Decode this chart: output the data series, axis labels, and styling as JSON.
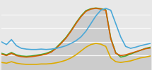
{
  "x": [
    0,
    1,
    2,
    3,
    4,
    5,
    6,
    7,
    8,
    9,
    10,
    11,
    12,
    13,
    14,
    15,
    16,
    17,
    18,
    19,
    20,
    21,
    22,
    23,
    24,
    25,
    26,
    27,
    28,
    29,
    30
  ],
  "blue": [
    72,
    65,
    78,
    62,
    55,
    53,
    52,
    52,
    53,
    52,
    53,
    55,
    58,
    62,
    68,
    75,
    85,
    100,
    120,
    140,
    155,
    160,
    155,
    120,
    85,
    60,
    55,
    58,
    62,
    65,
    68
  ],
  "orange": [
    40,
    36,
    42,
    36,
    33,
    32,
    33,
    35,
    37,
    40,
    45,
    55,
    68,
    82,
    100,
    120,
    138,
    152,
    158,
    160,
    158,
    155,
    80,
    42,
    36,
    38,
    42,
    46,
    50,
    54,
    56
  ],
  "green": [
    42,
    38,
    44,
    38,
    35,
    34,
    35,
    37,
    39,
    42,
    47,
    57,
    70,
    84,
    102,
    122,
    140,
    154,
    159,
    161,
    159,
    156,
    82,
    44,
    32,
    35,
    40,
    45,
    50,
    55,
    58
  ],
  "yellow": [
    18,
    16,
    20,
    16,
    14,
    13,
    13,
    13,
    14,
    14,
    15,
    17,
    20,
    24,
    30,
    38,
    48,
    58,
    65,
    68,
    66,
    60,
    30,
    20,
    18,
    20,
    22,
    26,
    30,
    32,
    35
  ],
  "fill_color": "#cccccc",
  "blue_color": "#4aa8d8",
  "orange_color": "#d45f00",
  "green_color": "#44aa33",
  "yellow_color": "#ddaa00",
  "bg_color": "#e8e8e8",
  "grid_color": "#f8f8f8",
  "ylim": [
    0,
    180
  ],
  "xlim": [
    0,
    30
  ],
  "linewidth": 1.2
}
